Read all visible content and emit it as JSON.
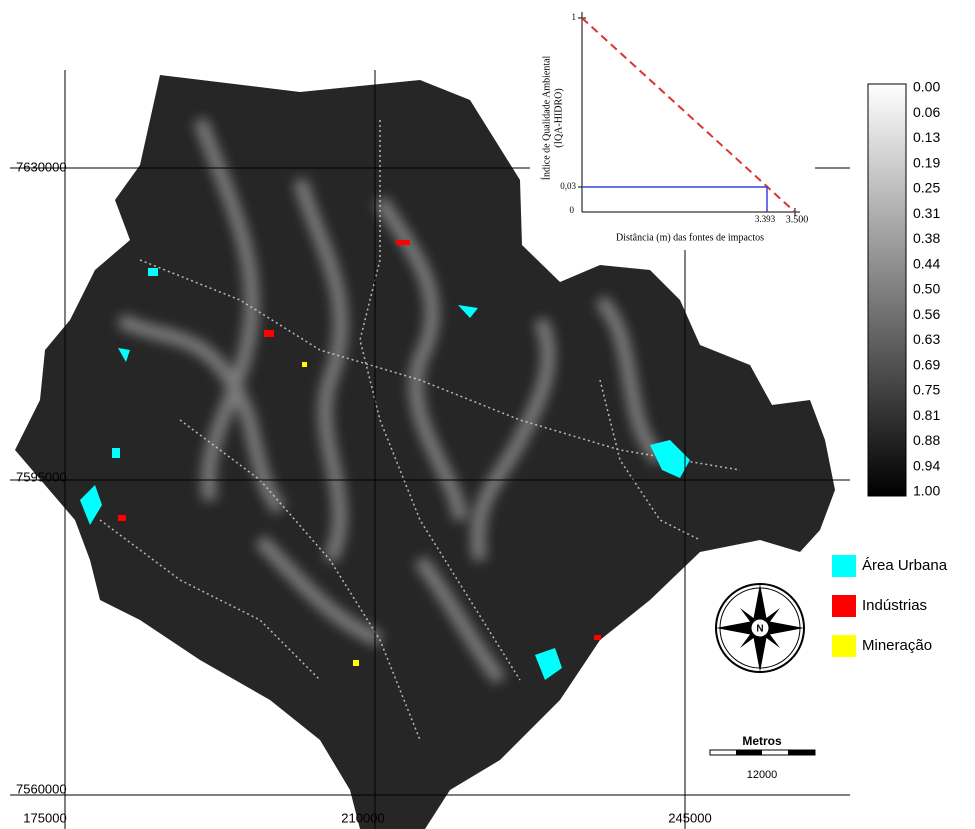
{
  "map": {
    "grid_labels": {
      "x": [
        "175000",
        "210000",
        "245000"
      ],
      "y": [
        "7630000",
        "7595000",
        "7560000"
      ]
    }
  },
  "inset_chart": {
    "y_label": [
      "Índice de Qualidade Ambiental",
      "(IQA-HIDRO)"
    ],
    "x_label": "Distância (m) das fontes de impactos",
    "y_ticks": [
      "1",
      "0,03",
      "0"
    ],
    "x_ticks": [
      "3.393",
      "3.500"
    ]
  },
  "colorbar": {
    "labels": [
      "0.00",
      "0.06",
      "0.13",
      "0.19",
      "0.25",
      "0.31",
      "0.38",
      "0.44",
      "0.50",
      "0.56",
      "0.63",
      "0.69",
      "0.75",
      "0.81",
      "0.88",
      "0.94",
      "1.00"
    ]
  },
  "legend": [
    {
      "label": "Área Urbana",
      "color": "#00ffff"
    },
    {
      "label": "Indústrias",
      "color": "#ff0000"
    },
    {
      "label": "Mineração",
      "color": "#ffff00"
    }
  ],
  "north_arrow": "N",
  "scale_bar": {
    "title": "Metros",
    "distance": "12000"
  }
}
